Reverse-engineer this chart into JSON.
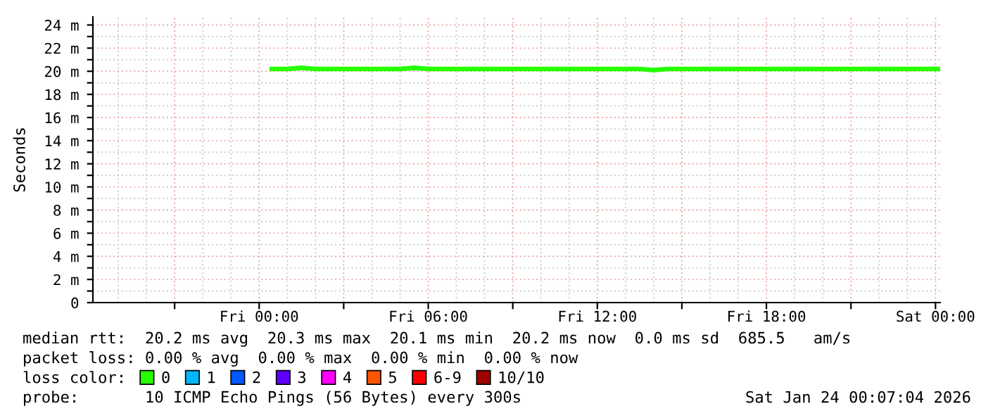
{
  "chart_data": {
    "type": "line",
    "ylabel": "Seconds",
    "xlim": [
      "2026-01-22T18:06",
      "2026-01-24T00:10"
    ],
    "ylim": [
      0,
      24.7
    ],
    "yticks": [
      0,
      {
        "value": 1,
        "label": null
      },
      {
        "value": 2,
        "label": "2 m"
      },
      {
        "value": 3,
        "label": null
      },
      {
        "value": 4,
        "label": "4 m"
      },
      {
        "value": 5,
        "label": null
      },
      {
        "value": 6,
        "label": "6 m"
      },
      {
        "value": 7,
        "label": null
      },
      {
        "value": 8,
        "label": "8 m"
      },
      {
        "value": 9,
        "label": null
      },
      {
        "value": 10,
        "label": "10 m"
      },
      {
        "value": 11,
        "label": null
      },
      {
        "value": 12,
        "label": "12 m"
      },
      {
        "value": 13,
        "label": null
      },
      {
        "value": 14,
        "label": "14 m"
      },
      {
        "value": 15,
        "label": null
      },
      {
        "value": 16,
        "label": "16 m"
      },
      {
        "value": 17,
        "label": null
      },
      {
        "value": 18,
        "label": "18 m"
      },
      {
        "value": 19,
        "label": null
      },
      {
        "value": 20,
        "label": "20 m"
      },
      {
        "value": 21,
        "label": null
      },
      {
        "value": 22,
        "label": "22 m"
      },
      {
        "value": 23,
        "label": null
      },
      {
        "value": 24,
        "label": "24 m"
      }
    ],
    "xticks": [
      {
        "value": "2026-01-22T19:00",
        "label": null
      },
      {
        "value": "2026-01-22T20:00",
        "label": null
      },
      {
        "value": "2026-01-22T21:00",
        "label": null
      },
      {
        "value": "2026-01-22T22:00",
        "label": null
      },
      {
        "value": "2026-01-22T23:00",
        "label": null
      },
      {
        "value": "2026-01-23T00:00",
        "label": "Fri 00:00"
      },
      {
        "value": "2026-01-23T01:00",
        "label": null
      },
      {
        "value": "2026-01-23T02:00",
        "label": null
      },
      {
        "value": "2026-01-23T03:00",
        "label": null
      },
      {
        "value": "2026-01-23T04:00",
        "label": null
      },
      {
        "value": "2026-01-23T05:00",
        "label": null
      },
      {
        "value": "2026-01-23T06:00",
        "label": "Fri 06:00"
      },
      {
        "value": "2026-01-23T07:00",
        "label": null
      },
      {
        "value": "2026-01-23T08:00",
        "label": null
      },
      {
        "value": "2026-01-23T09:00",
        "label": null
      },
      {
        "value": "2026-01-23T10:00",
        "label": null
      },
      {
        "value": "2026-01-23T11:00",
        "label": null
      },
      {
        "value": "2026-01-23T12:00",
        "label": "Fri 12:00"
      },
      {
        "value": "2026-01-23T13:00",
        "label": null
      },
      {
        "value": "2026-01-23T14:00",
        "label": null
      },
      {
        "value": "2026-01-23T15:00",
        "label": null
      },
      {
        "value": "2026-01-23T16:00",
        "label": null
      },
      {
        "value": "2026-01-23T17:00",
        "label": null
      },
      {
        "value": "2026-01-23T18:00",
        "label": "Fri 18:00"
      },
      {
        "value": "2026-01-23T19:00",
        "label": null
      },
      {
        "value": "2026-01-23T20:00",
        "label": null
      },
      {
        "value": "2026-01-23T21:00",
        "label": null
      },
      {
        "value": "2026-01-23T22:00",
        "label": null
      },
      {
        "value": "2026-01-23T23:00",
        "label": null
      },
      {
        "value": "2026-01-24T00:00",
        "label": "Sat 00:00"
      }
    ],
    "grid": true,
    "legend": "bottom",
    "legend_title": "loss color:",
    "marker": "none",
    "line_style": "solid",
    "series": [
      {
        "name": "0",
        "color": "#26ff00",
        "x": [
          "2026-01-23T00:27",
          "2026-01-23T01:00",
          "2026-01-23T01:30",
          "2026-01-23T02:00",
          "2026-01-23T02:30",
          "2026-01-23T03:00",
          "2026-01-23T03:30",
          "2026-01-23T04:00",
          "2026-01-23T04:30",
          "2026-01-23T05:00",
          "2026-01-23T05:30",
          "2026-01-23T06:00",
          "2026-01-23T06:30",
          "2026-01-23T07:00",
          "2026-01-23T07:30",
          "2026-01-23T08:00",
          "2026-01-23T08:30",
          "2026-01-23T09:00",
          "2026-01-23T09:30",
          "2026-01-23T10:00",
          "2026-01-23T10:30",
          "2026-01-23T11:00",
          "2026-01-23T11:30",
          "2026-01-23T12:00",
          "2026-01-23T12:30",
          "2026-01-23T13:00",
          "2026-01-23T13:30",
          "2026-01-23T14:00",
          "2026-01-23T14:30",
          "2026-01-23T15:00",
          "2026-01-23T15:30",
          "2026-01-23T16:00",
          "2026-01-23T16:30",
          "2026-01-23T17:00",
          "2026-01-23T17:30",
          "2026-01-23T18:00",
          "2026-01-23T18:30",
          "2026-01-23T19:00",
          "2026-01-23T19:30",
          "2026-01-23T20:00",
          "2026-01-23T20:30",
          "2026-01-23T21:00",
          "2026-01-23T21:30",
          "2026-01-23T22:00",
          "2026-01-23T22:30",
          "2026-01-23T23:00",
          "2026-01-23T23:30",
          "2026-01-24T00:00",
          "2026-01-24T00:07"
        ],
        "values": [
          20.2,
          20.2,
          20.3,
          20.2,
          20.2,
          20.2,
          20.2,
          20.2,
          20.2,
          20.2,
          20.3,
          20.2,
          20.2,
          20.2,
          20.2,
          20.2,
          20.2,
          20.2,
          20.2,
          20.2,
          20.2,
          20.2,
          20.2,
          20.2,
          20.2,
          20.2,
          20.2,
          20.1,
          20.2,
          20.2,
          20.2,
          20.2,
          20.2,
          20.2,
          20.2,
          20.2,
          20.2,
          20.2,
          20.2,
          20.2,
          20.2,
          20.2,
          20.2,
          20.2,
          20.2,
          20.2,
          20.2,
          20.2,
          20.2
        ]
      },
      {
        "name": "1",
        "color": "#00b8ff"
      },
      {
        "name": "2",
        "color": "#0059ff"
      },
      {
        "name": "3",
        "color": "#5e00ff"
      },
      {
        "name": "4",
        "color": "#ff00ff"
      },
      {
        "name": "5",
        "color": "#ff5500"
      },
      {
        "name": "6-9",
        "color": "#ff0000"
      },
      {
        "name": "10/10",
        "color": "#a10000"
      }
    ],
    "annotations": [
      "median rtt:  20.2 ms avg  20.3 ms max  20.1 ms min  20.2 ms now  0.0 ms sd  685.5   am/s",
      "packet loss: 0.00 % avg  0.00 % max  0.00 % min  0.00 % now",
      "probe:       10 ICMP Echo Pings (56 Bytes) every 300s",
      "Sat Jan 24 00:07:04 2026"
    ]
  }
}
